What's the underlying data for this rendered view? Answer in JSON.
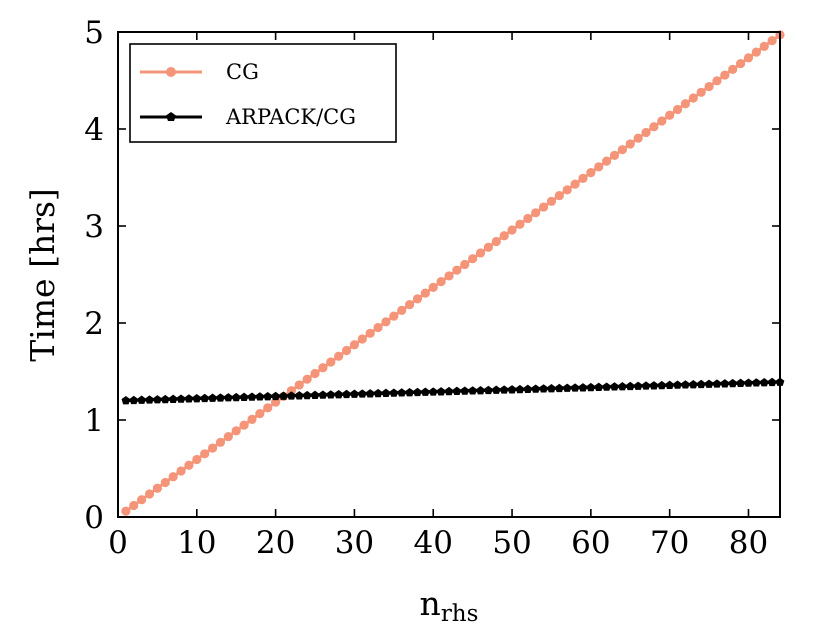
{
  "chart_data": {
    "type": "line",
    "title": "",
    "xlabel_main": "n",
    "xlabel_sub": "rhs",
    "ylabel": "Time [hrs]",
    "xlim": [
      0,
      84
    ],
    "ylim": [
      0,
      5
    ],
    "xticks": [
      0,
      10,
      20,
      30,
      40,
      50,
      60,
      70,
      80
    ],
    "yticks": [
      0,
      1,
      2,
      3,
      4,
      5
    ],
    "grid": false,
    "legend_position": "top-left",
    "x_range": {
      "start": 1,
      "end": 84,
      "step": 1
    },
    "series": [
      {
        "name": "CG",
        "color": "#f4957a",
        "marker": "circle",
        "linear": {
          "y_at_start": 0.06,
          "y_at_end": 4.97
        }
      },
      {
        "name": "ARPACK/CG",
        "color": "#000000",
        "marker": "pentagon",
        "linear": {
          "y_at_start": 1.2,
          "y_at_end": 1.39
        }
      }
    ]
  }
}
